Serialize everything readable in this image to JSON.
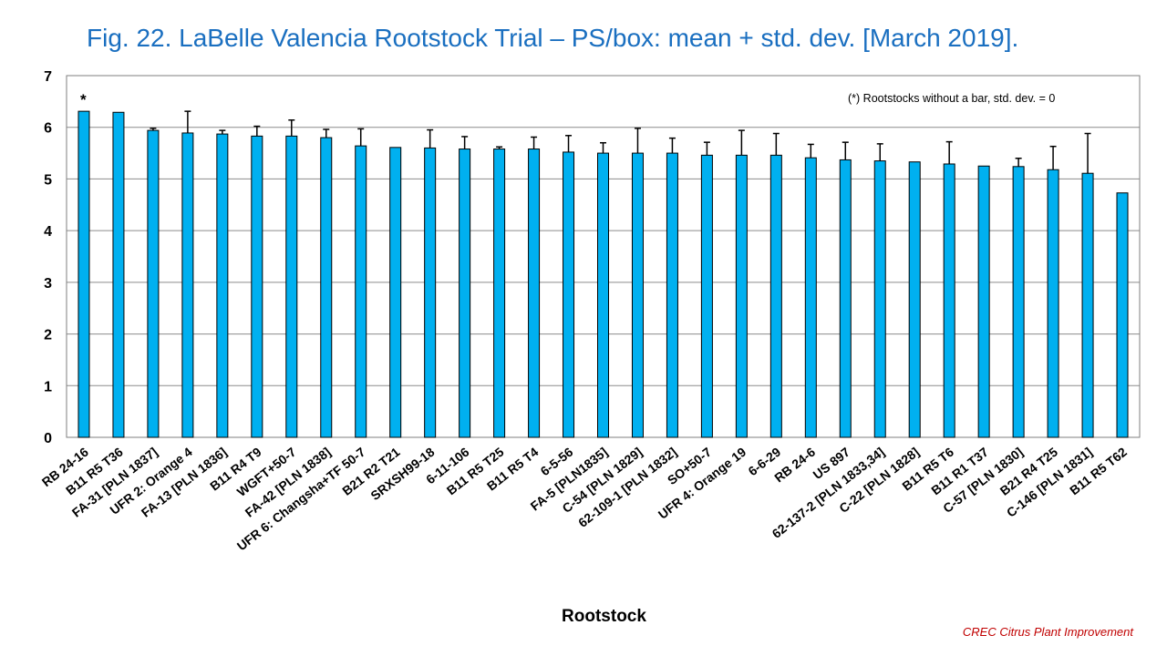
{
  "title": "Fig. 22. LaBelle Valencia Rootstock Trial – PS/box: mean + std. dev. [March 2019].",
  "credit": "CREC Citrus Plant Improvement",
  "colors": {
    "bar": "#00b0f0",
    "title": "#1a6fc0",
    "credit": "#c00000"
  },
  "chart_data": {
    "type": "bar",
    "title": "Fig. 22. LaBelle Valencia Rootstock Trial – PS/box: mean + std. dev. [March 2019].",
    "xlabel": "Rootstock",
    "ylabel": "",
    "ylim": [
      0,
      7
    ],
    "yticks": [
      0,
      1,
      2,
      3,
      4,
      5,
      6,
      7
    ],
    "grid": true,
    "annotation": "(*) Rootstocks without  a bar, std. dev. = 0",
    "marker": "*",
    "categories": [
      "RB 24-16",
      "B11 R5 T36",
      "FA-31 [PLN 1837]",
      "UFR 2: Orange 4",
      "FA-13 [PLN 1836]",
      "B11 R4 T9",
      "WGFT+50-7",
      "FA-42 [PLN 1838]",
      "UFR 6: Changsha+TF 50-7",
      "B21 R2 T21",
      "SRXSH99-18",
      "6-11-106",
      "B11 R5 T25",
      "B11 R5 T4",
      "6-5-56",
      "FA-5 [PLN1835]",
      "C-54 [PLN 1829]",
      "62-109-1 [PLN 1832]",
      "SO+50-7",
      "UFR 4: Orange 19",
      "6-6-29",
      "RB 24-6",
      "US 897",
      "62-137-2 [PLN 1833,34]",
      "C-22 [PLN 1828]",
      "B11 R5 T6",
      "B11 R1 T37",
      "C-57 [PLN 1830]",
      "B21 R4 T25",
      "C-146 [PLN 1831]",
      "B11 R5 T62"
    ],
    "values": [
      6.31,
      6.29,
      5.94,
      5.89,
      5.87,
      5.83,
      5.83,
      5.8,
      5.64,
      5.61,
      5.6,
      5.58,
      5.58,
      5.58,
      5.52,
      5.5,
      5.5,
      5.5,
      5.46,
      5.46,
      5.46,
      5.41,
      5.37,
      5.35,
      5.33,
      5.29,
      5.25,
      5.24,
      5.18,
      5.11,
      4.73
    ],
    "std_dev": [
      0,
      0,
      0.04,
      0.42,
      0.07,
      0.19,
      0.31,
      0.16,
      0.33,
      0,
      0.35,
      0.24,
      0.04,
      0.23,
      0.32,
      0.2,
      0.48,
      0.29,
      0.25,
      0.48,
      0.42,
      0.26,
      0.34,
      0.33,
      0,
      0.43,
      0,
      0.16,
      0.45,
      0.77,
      0
    ]
  }
}
